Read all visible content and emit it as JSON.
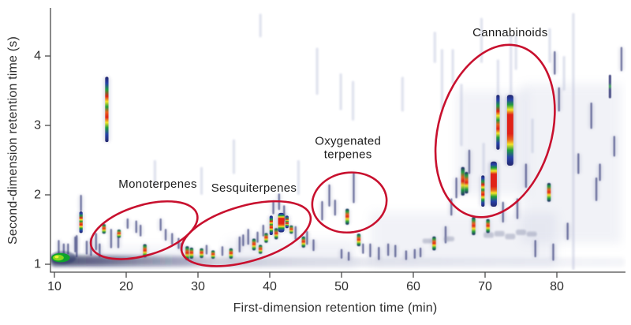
{
  "figure": {
    "background": "#ffffff",
    "accent_red": "#c8102e",
    "axis_color": "#4a4a4a",
    "text_color": "#2d2d2d"
  },
  "chart_data": {
    "type": "heatmap",
    "title": "",
    "xlabel": "First-dimension retention time (min)",
    "ylabel": "Second-dimension retention time (s)",
    "xlim": [
      9.45,
      89.6
    ],
    "ylim": [
      0.88,
      4.7
    ],
    "xticks": [
      10,
      20,
      30,
      40,
      50,
      60,
      70,
      80
    ],
    "yticks": [
      1,
      2,
      3,
      4
    ],
    "grid": false,
    "legend": "none",
    "regions": [
      {
        "label": "Monoterpenes",
        "lines": [
          "Monoterpenes"
        ],
        "x": 22.5,
        "y": 1.49,
        "rx": 7.7,
        "ry": 0.36,
        "rot": -17,
        "lx": 24.4,
        "ly": 2.16
      },
      {
        "label": "Sesquiterpenes",
        "lines": [
          "Sesquiterpenes"
        ],
        "x": 36.7,
        "y": 1.44,
        "rx": 9.3,
        "ry": 0.4,
        "rot": -16,
        "lx": 37.8,
        "ly": 2.1
      },
      {
        "label": "Oxygenated terpenes",
        "lines": [
          "Oxygenated",
          "terpenes"
        ],
        "x": 51.1,
        "y": 1.89,
        "rx": 5.2,
        "ry": 0.43,
        "rot": -8,
        "lx": 50.9,
        "ly": 2.78
      },
      {
        "label": "Cannabinoids",
        "lines": [
          "Cannabinoids"
        ],
        "x": 71.4,
        "y": 2.92,
        "rx": 7.9,
        "ry": 1.27,
        "rot": 16,
        "lx": 73.5,
        "ly": 4.34
      }
    ],
    "blob": {
      "x": 11.2,
      "a": 1.0,
      "b": 1.19,
      "w": 3.6
    },
    "bands": [
      [
        9.5,
        89.5,
        0.96,
        1.1,
        "light"
      ],
      [
        9.5,
        33.0,
        0.99,
        1.13,
        "dark"
      ]
    ],
    "hazes": [
      [
        22,
        0.95,
        1.25,
        14
      ],
      [
        43,
        0.95,
        1.35,
        18
      ],
      [
        67,
        0.95,
        1.75,
        26
      ],
      [
        82,
        1.3,
        3.6,
        14
      ],
      [
        71,
        2.0,
        3.5,
        10
      ]
    ],
    "peaks": [
      [
        13.7,
        1.45,
        1.76,
        "hot"
      ],
      [
        16.9,
        1.44,
        1.58,
        "warm"
      ],
      [
        17.3,
        2.76,
        3.7,
        "hot"
      ],
      [
        19.0,
        1.38,
        1.5,
        "warm"
      ],
      [
        22.6,
        1.1,
        1.29,
        "warm"
      ],
      [
        28.5,
        1.06,
        1.26,
        "warm"
      ],
      [
        29.1,
        1.08,
        1.24,
        "warm"
      ],
      [
        30.5,
        1.09,
        1.23,
        "warm"
      ],
      [
        32.1,
        1.08,
        1.2,
        "warm"
      ],
      [
        34.6,
        1.08,
        1.23,
        "warm"
      ],
      [
        37.8,
        1.2,
        1.37,
        "warm"
      ],
      [
        38.7,
        1.15,
        1.28,
        "warm"
      ],
      [
        39.5,
        1.31,
        1.45,
        "warm"
      ],
      [
        40.2,
        1.42,
        1.7,
        "hot"
      ],
      [
        40.9,
        1.36,
        1.52,
        "warm"
      ],
      [
        41.6,
        1.46,
        1.74,
        "big"
      ],
      [
        42.4,
        1.52,
        1.7,
        "hot"
      ],
      [
        43.0,
        1.44,
        1.56,
        "warm"
      ],
      [
        44.7,
        1.24,
        1.4,
        "warm"
      ],
      [
        50.8,
        1.57,
        1.8,
        "warm"
      ],
      [
        52.4,
        1.26,
        1.44,
        "warm"
      ],
      [
        62.9,
        1.2,
        1.4,
        "warm"
      ],
      [
        66.9,
        1.99,
        2.4,
        "warm"
      ],
      [
        67.4,
        2.02,
        2.33,
        "warm"
      ],
      [
        69.7,
        1.83,
        2.28,
        "hot"
      ],
      [
        71.2,
        1.83,
        2.48,
        "big"
      ],
      [
        71.8,
        2.65,
        3.44,
        "hot"
      ],
      [
        73.5,
        2.42,
        3.44,
        "big"
      ],
      [
        68.4,
        1.42,
        1.68,
        "warm"
      ],
      [
        70.4,
        1.45,
        1.65,
        "warm"
      ],
      [
        78.9,
        1.9,
        2.17,
        "warm"
      ],
      [
        87.4,
        3.39,
        3.73,
        "cool"
      ],
      [
        10.6,
        1.1,
        1.35,
        "faint"
      ],
      [
        11.3,
        1.12,
        1.3,
        "faint"
      ],
      [
        11.9,
        1.14,
        1.3,
        "faint"
      ],
      [
        12.9,
        1.17,
        1.4,
        "faint"
      ],
      [
        13.1,
        1.1,
        1.42,
        "faint"
      ],
      [
        13.7,
        1.76,
        2.0,
        "faint"
      ],
      [
        14.5,
        1.14,
        1.34,
        "faint"
      ],
      [
        15.1,
        1.12,
        1.38,
        "faint"
      ],
      [
        15.8,
        1.2,
        1.45,
        "faint"
      ],
      [
        16.3,
        1.1,
        1.3,
        "faint"
      ],
      [
        17.9,
        1.23,
        1.51,
        "faint"
      ],
      [
        18.9,
        1.23,
        1.45,
        "faint"
      ],
      [
        20.2,
        1.51,
        1.66,
        "faint"
      ],
      [
        21.4,
        1.45,
        1.63,
        "faint"
      ],
      [
        22.0,
        1.4,
        1.57,
        "faint"
      ],
      [
        24.8,
        1.48,
        1.66,
        "faint"
      ],
      [
        25.5,
        1.34,
        1.51,
        "faint"
      ],
      [
        26.4,
        1.28,
        1.45,
        "faint"
      ],
      [
        27.3,
        1.22,
        1.38,
        "faint"
      ],
      [
        27.7,
        1.19,
        1.31,
        "faint"
      ],
      [
        31.2,
        1.14,
        1.28,
        "faint"
      ],
      [
        33.4,
        1.12,
        1.26,
        "faint"
      ],
      [
        35.8,
        1.17,
        1.4,
        "faint"
      ],
      [
        36.3,
        1.26,
        1.43,
        "faint"
      ],
      [
        37.0,
        1.28,
        1.51,
        "faint"
      ],
      [
        38.3,
        1.31,
        1.47,
        "faint"
      ],
      [
        39.1,
        1.4,
        1.57,
        "faint"
      ],
      [
        40.5,
        1.72,
        1.92,
        "faint"
      ],
      [
        41.3,
        1.78,
        2.02,
        "faint"
      ],
      [
        42.0,
        1.62,
        1.85,
        "faint"
      ],
      [
        43.6,
        1.35,
        1.55,
        "faint"
      ],
      [
        45.2,
        1.28,
        1.48,
        "faint"
      ],
      [
        46.1,
        1.19,
        1.36,
        "faint"
      ],
      [
        47.3,
        1.63,
        1.91,
        "faint"
      ],
      [
        48.3,
        1.83,
        2.15,
        "faint"
      ],
      [
        49.1,
        1.7,
        1.93,
        "faint"
      ],
      [
        51.7,
        1.88,
        2.33,
        "faint"
      ],
      [
        50.0,
        1.08,
        1.22,
        "faint"
      ],
      [
        51.0,
        1.05,
        1.18,
        "faint"
      ],
      [
        53.0,
        1.15,
        1.3,
        "faint"
      ],
      [
        54.0,
        1.1,
        1.3,
        "faint"
      ],
      [
        55.2,
        1.06,
        1.25,
        "faint"
      ],
      [
        56.5,
        1.12,
        1.3,
        "faint"
      ],
      [
        57.5,
        1.1,
        1.28,
        "faint"
      ],
      [
        59.0,
        1.06,
        1.2,
        "faint"
      ],
      [
        60.2,
        1.08,
        1.22,
        "faint"
      ],
      [
        61.0,
        1.1,
        1.24,
        "faint"
      ],
      [
        64.5,
        1.3,
        1.55,
        "faint"
      ],
      [
        65.3,
        1.7,
        1.95,
        "faint"
      ],
      [
        66.0,
        1.95,
        2.25,
        "faint"
      ],
      [
        67.8,
        2.3,
        2.65,
        "faint"
      ],
      [
        72.5,
        1.6,
        1.9,
        "faint"
      ],
      [
        74.5,
        1.65,
        1.95,
        "faint"
      ],
      [
        75.7,
        2.1,
        2.45,
        "faint"
      ],
      [
        77.0,
        1.1,
        1.35,
        "faint"
      ],
      [
        79.5,
        1.05,
        1.3,
        "faint"
      ],
      [
        80.3,
        3.2,
        3.55,
        "faint"
      ],
      [
        81.5,
        1.35,
        1.6,
        "faint"
      ],
      [
        83.0,
        2.3,
        2.6,
        "faint"
      ],
      [
        84.8,
        2.95,
        3.33,
        "faint"
      ],
      [
        85.5,
        1.91,
        2.25,
        "faint"
      ],
      [
        86.0,
        2.2,
        2.45,
        "faint"
      ],
      [
        88.0,
        2.55,
        2.85,
        "faint"
      ],
      [
        89.0,
        3.78,
        4.13,
        "faint"
      ],
      [
        79.7,
        3.73,
        4.07,
        "faint"
      ],
      [
        38.7,
        4.27,
        4.61,
        "trace"
      ],
      [
        46.6,
        3.44,
        4.12,
        "trace"
      ],
      [
        49.9,
        3.22,
        3.75,
        "trace"
      ],
      [
        51.6,
        3.07,
        3.64,
        "trace"
      ],
      [
        58.5,
        3.2,
        3.7,
        "trace"
      ],
      [
        63.0,
        3.9,
        4.35,
        "trace"
      ],
      [
        64.0,
        3.2,
        4.1,
        "trace"
      ],
      [
        65.5,
        3.6,
        4.1,
        "trace"
      ],
      [
        66.7,
        2.7,
        3.6,
        "trace"
      ],
      [
        69.5,
        3.9,
        4.55,
        "trace"
      ],
      [
        69.8,
        2.3,
        2.75,
        "trace"
      ],
      [
        71.8,
        3.45,
        3.95,
        "trace"
      ],
      [
        73.6,
        3.45,
        4.3,
        "trace"
      ],
      [
        74.3,
        3.8,
        4.3,
        "trace"
      ],
      [
        76.6,
        2.6,
        3.1,
        "trace"
      ],
      [
        79.0,
        3.9,
        4.4,
        "trace"
      ],
      [
        81.0,
        3.5,
        4.0,
        "trace"
      ],
      [
        82.3,
        0.92,
        4.62,
        "trace"
      ],
      [
        44.0,
        2.0,
        2.5,
        "trace"
      ],
      [
        35.0,
        2.3,
        2.8,
        "trace"
      ],
      [
        30.5,
        2.0,
        2.4,
        "trace"
      ],
      [
        24.0,
        2.1,
        2.5,
        "trace"
      ],
      [
        70.5,
        1.38,
        1.46,
        "scrib"
      ],
      [
        72.0,
        1.4,
        1.48,
        "scrib"
      ],
      [
        73.5,
        1.36,
        1.44,
        "scrib"
      ],
      [
        75.0,
        1.42,
        1.5,
        "scrib"
      ],
      [
        76.5,
        1.4,
        1.47,
        "scrib"
      ],
      [
        62.0,
        1.3,
        1.37,
        "scrib"
      ],
      [
        65.0,
        1.33,
        1.4,
        "scrib"
      ]
    ]
  }
}
